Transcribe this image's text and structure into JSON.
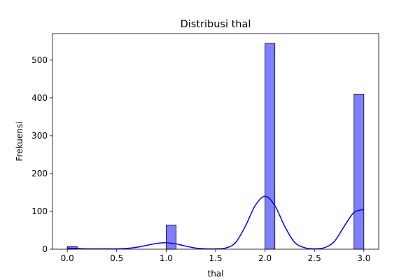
{
  "chart_data": {
    "type": "bar",
    "title": "Distribusi thal",
    "xlabel": "thal",
    "ylabel": "Frekuensi",
    "xlim": [
      -0.15,
      3.15
    ],
    "ylim": [
      0,
      570
    ],
    "x_ticks": [
      0.0,
      0.5,
      1.0,
      1.5,
      2.0,
      2.5,
      3.0
    ],
    "x_tick_labels": [
      "0.0",
      "0.5",
      "1.0",
      "1.5",
      "2.0",
      "2.5",
      "3.0"
    ],
    "y_ticks": [
      0,
      100,
      200,
      300,
      400,
      500
    ],
    "y_tick_labels": [
      "0",
      "100",
      "200",
      "300",
      "400",
      "500"
    ],
    "grid": false,
    "bar_color": "#8080ff",
    "bar_edge_color": "#000000",
    "kde_color": "#0000ff",
    "bins": [
      {
        "x0": 0.0,
        "x1": 0.1,
        "count": 7
      },
      {
        "x0": 1.0,
        "x1": 1.1,
        "count": 64
      },
      {
        "x0": 2.0,
        "x1": 2.1,
        "count": 544
      },
      {
        "x0": 2.9,
        "x1": 3.0,
        "count": 410
      }
    ],
    "kde": {
      "x": [
        0.0,
        0.1,
        0.2,
        0.3,
        0.4,
        0.5,
        0.6,
        0.7,
        0.8,
        0.9,
        1.0,
        1.1,
        1.2,
        1.3,
        1.4,
        1.5,
        1.6,
        1.7,
        1.8,
        1.9,
        2.0,
        2.1,
        2.2,
        2.3,
        2.4,
        2.5,
        2.6,
        2.7,
        2.8,
        2.9,
        3.0
      ],
      "y": [
        3,
        2,
        1,
        1,
        1,
        1,
        2,
        5,
        10,
        15,
        17,
        14,
        8,
        3,
        1,
        1,
        3,
        17,
        60,
        115,
        140,
        115,
        60,
        18,
        4,
        1,
        4,
        20,
        60,
        97,
        105
      ]
    }
  }
}
